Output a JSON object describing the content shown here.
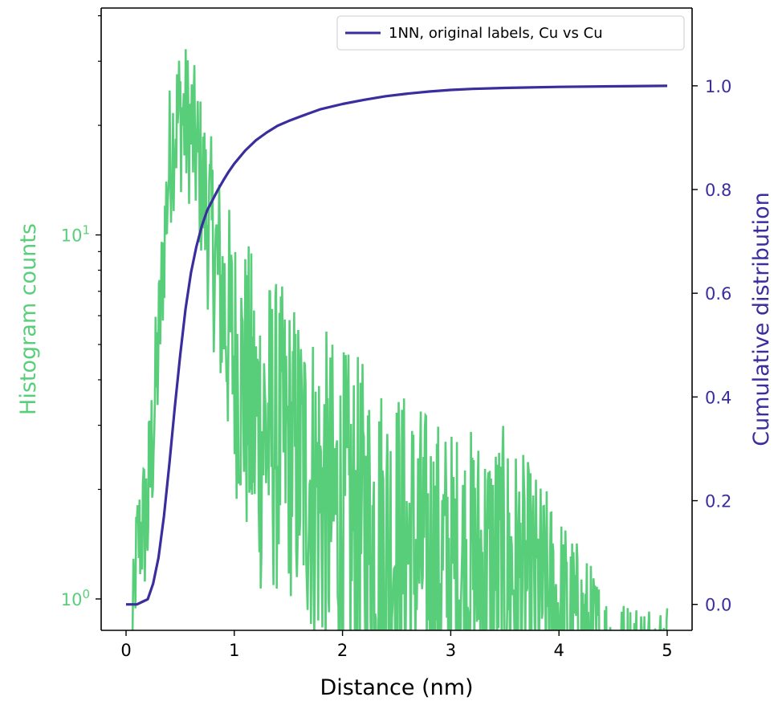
{
  "colors": {
    "histogram": "#59CE7A",
    "cumulative": "#3A2D9E",
    "axis": "#000000",
    "background": "#ffffff"
  },
  "chart_data": {
    "type": "line",
    "xlabel": "Distance (nm)",
    "ylabel_left": "Histogram counts",
    "ylabel_right": "Cumulative distribution",
    "xlim": [
      -0.23,
      5.23
    ],
    "x_ticks": [
      0,
      1,
      2,
      3,
      4,
      5
    ],
    "x_tick_labels": [
      "0",
      "1",
      "2",
      "3",
      "4",
      "5"
    ],
    "y_left": {
      "scale": "log",
      "ylim": [
        0.82,
        42
      ],
      "ticks": [
        1,
        10
      ],
      "tick_labels": [
        {
          "base": "10",
          "exp": "0"
        },
        {
          "base": "10",
          "exp": "1"
        }
      ],
      "minor_ticks": [
        2,
        3,
        4,
        5,
        6,
        7,
        8,
        9,
        20,
        30,
        40
      ]
    },
    "y_right": {
      "scale": "linear",
      "ylim": [
        -0.05,
        1.15
      ],
      "ticks": [
        0.0,
        0.2,
        0.4,
        0.6,
        0.8,
        1.0
      ],
      "tick_labels": [
        "0.0",
        "0.2",
        "0.4",
        "0.6",
        "0.8",
        "1.0"
      ]
    },
    "legend": {
      "position": "top-right",
      "entries": [
        "1NN, original labels, Cu vs Cu"
      ]
    },
    "series": [
      {
        "axis": "left",
        "style": "noisy histogram (log counts)",
        "x_range": [
          0.05,
          5.0
        ],
        "envelope": {
          "x": [
            0.05,
            0.1,
            0.2,
            0.3,
            0.35,
            0.4,
            0.45,
            0.5,
            0.55,
            0.6,
            0.65,
            0.7,
            0.8,
            0.9,
            1.0,
            1.2,
            1.5,
            2.0,
            2.5,
            3.0,
            3.5,
            3.9,
            4.5,
            5.0
          ],
          "upper": [
            1,
            2,
            3,
            8,
            14,
            26,
            32,
            36,
            34,
            32,
            28,
            24,
            18,
            14,
            11,
            9,
            7,
            5,
            4,
            3,
            3,
            2,
            1,
            1
          ],
          "lower": [
            0.5,
            1,
            1,
            3,
            6,
            10,
            12,
            13,
            12,
            12,
            10,
            8,
            5,
            3,
            2,
            1,
            1,
            0.5,
            0.5,
            0.5,
            0.5,
            0.5,
            0.5,
            0.5
          ]
        }
      },
      {
        "name": "1NN, original labels, Cu vs Cu",
        "axis": "right",
        "x": [
          0,
          0.1,
          0.15,
          0.2,
          0.25,
          0.3,
          0.35,
          0.4,
          0.45,
          0.5,
          0.55,
          0.6,
          0.65,
          0.7,
          0.75,
          0.8,
          0.85,
          0.9,
          0.95,
          1.0,
          1.1,
          1.2,
          1.3,
          1.4,
          1.5,
          1.6,
          1.8,
          2.0,
          2.2,
          2.4,
          2.6,
          2.8,
          3.0,
          3.2,
          3.5,
          4.0,
          4.5,
          5.0
        ],
        "values": [
          0.0,
          0.0,
          0.005,
          0.01,
          0.04,
          0.09,
          0.17,
          0.27,
          0.38,
          0.48,
          0.57,
          0.64,
          0.69,
          0.73,
          0.76,
          0.78,
          0.8,
          0.818,
          0.835,
          0.85,
          0.875,
          0.895,
          0.91,
          0.923,
          0.932,
          0.94,
          0.955,
          0.965,
          0.973,
          0.98,
          0.985,
          0.989,
          0.992,
          0.994,
          0.996,
          0.998,
          0.999,
          1.0
        ]
      }
    ]
  }
}
